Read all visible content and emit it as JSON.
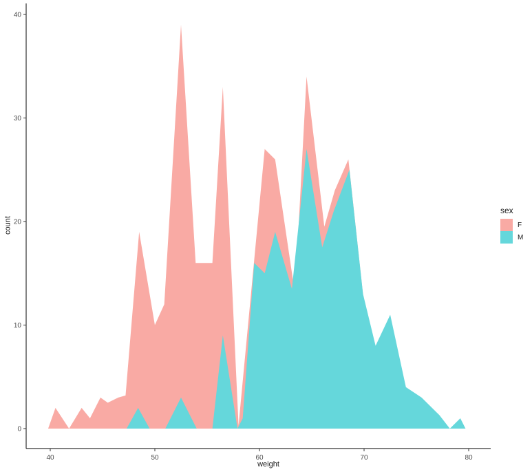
{
  "chart_data": {
    "type": "area",
    "title": "",
    "xlabel": "weight",
    "ylabel": "count",
    "xlim": [
      40,
      80
    ],
    "ylim": [
      0,
      40
    ],
    "x_ticks": [
      40,
      50,
      60,
      70,
      80
    ],
    "y_ticks": [
      0,
      10,
      20,
      30,
      40
    ],
    "grid": false,
    "legend": {
      "title": "sex",
      "position": "right",
      "entries": [
        {
          "label": "F",
          "color": "#F9AAA4"
        },
        {
          "label": "M",
          "color": "#65D7DB"
        }
      ]
    },
    "series": [
      {
        "name": "F",
        "color": "#F9AAA4",
        "points": [
          [
            39.8,
            0
          ],
          [
            40.5,
            2
          ],
          [
            41.8,
            0
          ],
          [
            43.0,
            2
          ],
          [
            43.8,
            1
          ],
          [
            44.8,
            3
          ],
          [
            45.5,
            2.5
          ],
          [
            46.5,
            3
          ],
          [
            47.2,
            3.2
          ],
          [
            48.5,
            19
          ],
          [
            50.0,
            10
          ],
          [
            50.9,
            12
          ],
          [
            52.5,
            39
          ],
          [
            53.9,
            16
          ],
          [
            55.5,
            16
          ],
          [
            56.5,
            33
          ],
          [
            58.0,
            0.3
          ],
          [
            60.5,
            27
          ],
          [
            61.5,
            26
          ],
          [
            63.4,
            13
          ],
          [
            64.5,
            34
          ],
          [
            66.2,
            19.5
          ],
          [
            67.2,
            23
          ],
          [
            68.5,
            26
          ],
          [
            70.0,
            12
          ],
          [
            71.5,
            0
          ]
        ]
      },
      {
        "name": "M",
        "color": "#65D7DB",
        "points": [
          [
            47.3,
            0
          ],
          [
            48.4,
            2
          ],
          [
            49.5,
            0
          ],
          [
            51.0,
            0
          ],
          [
            52.5,
            3
          ],
          [
            54.0,
            0
          ],
          [
            55.5,
            0
          ],
          [
            56.5,
            9
          ],
          [
            57.9,
            0
          ],
          [
            58.4,
            1
          ],
          [
            59.5,
            16
          ],
          [
            60.5,
            15
          ],
          [
            61.5,
            19
          ],
          [
            63.1,
            13.5
          ],
          [
            64.5,
            27
          ],
          [
            66.0,
            17.5
          ],
          [
            67.1,
            21
          ],
          [
            68.6,
            25
          ],
          [
            69.9,
            13
          ],
          [
            71.1,
            8
          ],
          [
            72.5,
            11
          ],
          [
            74.0,
            4
          ],
          [
            75.5,
            3
          ],
          [
            77.2,
            1.3
          ],
          [
            78.2,
            0
          ],
          [
            79.2,
            1
          ],
          [
            79.7,
            0
          ]
        ]
      }
    ],
    "colors": {
      "axis_line": "#333333",
      "tick_text": "#4d4d4d",
      "axis_title_text": "#1a1a1a"
    }
  }
}
